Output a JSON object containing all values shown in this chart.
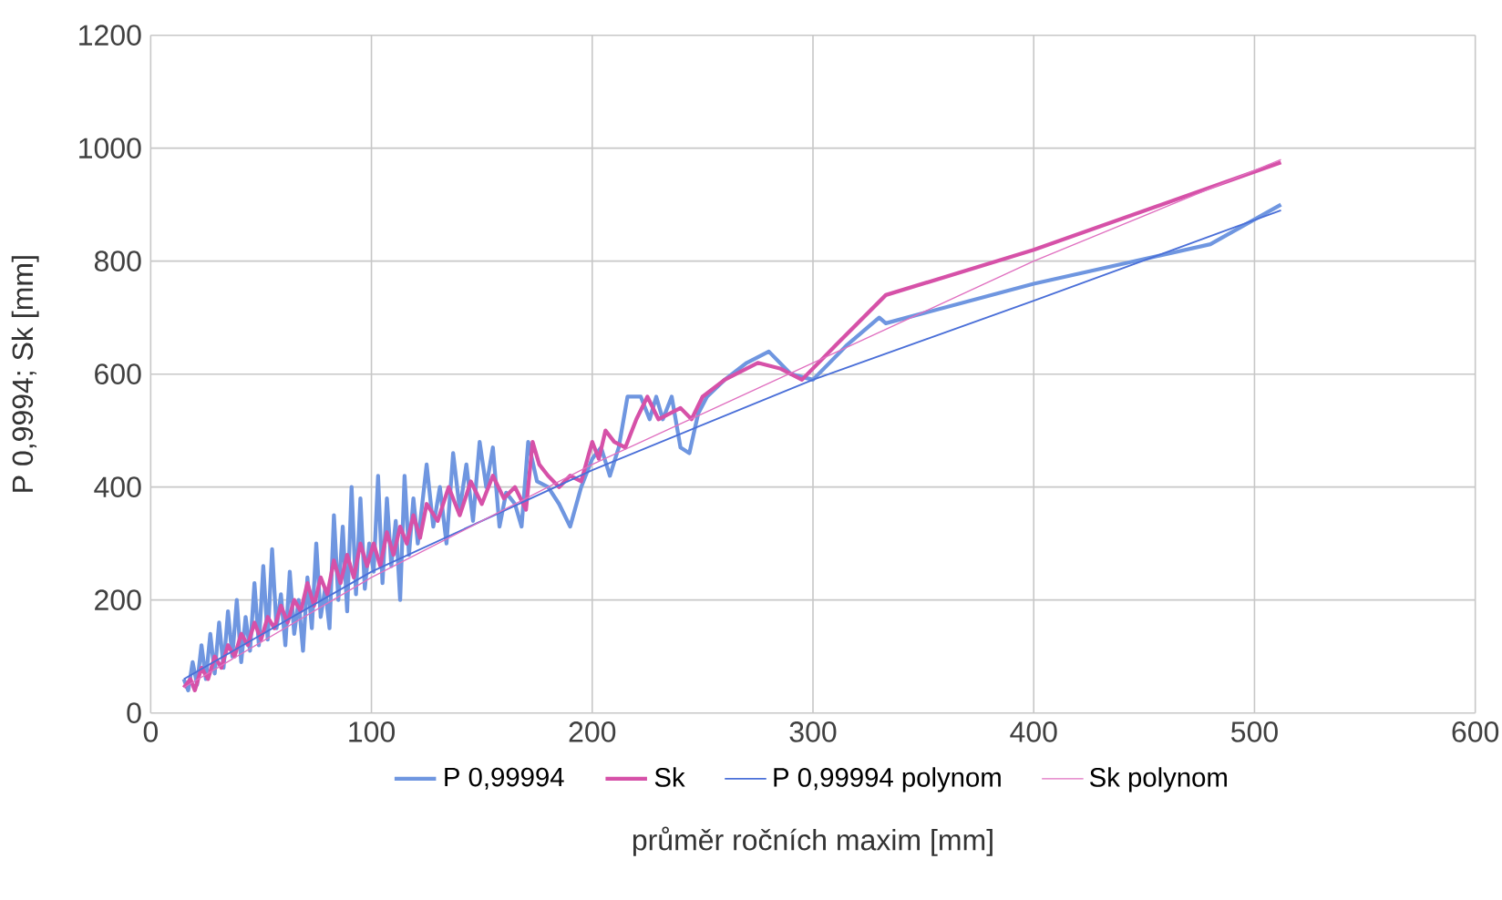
{
  "chart_data": {
    "type": "line",
    "xlabel": "průměr ročních maxim [mm]",
    "ylabel": "P 0,9994; Sk [mm]",
    "xlim": [
      0,
      600
    ],
    "xticks": [
      0,
      100,
      200,
      300,
      400,
      500,
      600
    ],
    "ylim": [
      0,
      1200
    ],
    "yticks": [
      0,
      200,
      400,
      600,
      800,
      1000,
      1200
    ],
    "grid": true,
    "legend": "bottom",
    "marker": "none",
    "line_style": "solid",
    "series": [
      {
        "name": "P 0,99994",
        "color": "#6f96e0",
        "x": [
          15,
          17,
          19,
          21,
          23,
          25,
          27,
          29,
          31,
          33,
          35,
          37,
          39,
          41,
          43,
          45,
          47,
          49,
          51,
          53,
          55,
          57,
          59,
          61,
          63,
          65,
          67,
          69,
          71,
          73,
          75,
          77,
          79,
          81,
          83,
          85,
          87,
          89,
          91,
          93,
          95,
          97,
          99,
          101,
          103,
          105,
          107,
          109,
          111,
          113,
          115,
          117,
          119,
          121,
          125,
          128,
          131,
          134,
          137,
          140,
          143,
          146,
          149,
          152,
          155,
          158,
          161,
          165,
          168,
          171,
          175,
          180,
          185,
          190,
          195,
          200,
          204,
          208,
          212,
          216,
          222,
          226,
          229,
          232,
          236,
          240,
          244,
          248,
          252,
          260,
          270,
          280,
          290,
          300,
          315,
          330,
          333,
          400,
          480,
          512
        ],
        "values": [
          60,
          40,
          90,
          50,
          120,
          60,
          140,
          70,
          160,
          80,
          180,
          100,
          200,
          90,
          170,
          110,
          230,
          120,
          260,
          130,
          290,
          150,
          210,
          120,
          250,
          140,
          200,
          110,
          240,
          150,
          300,
          170,
          220,
          150,
          350,
          200,
          330,
          180,
          400,
          210,
          380,
          220,
          300,
          250,
          420,
          230,
          380,
          260,
          340,
          200,
          420,
          280,
          380,
          300,
          440,
          330,
          400,
          300,
          460,
          360,
          440,
          340,
          480,
          400,
          470,
          330,
          390,
          370,
          330,
          480,
          410,
          400,
          370,
          330,
          400,
          450,
          470,
          420,
          470,
          560,
          560,
          520,
          560,
          520,
          560,
          470,
          460,
          530,
          560,
          590,
          620,
          640,
          600,
          590,
          650,
          700,
          690,
          760,
          830,
          900
        ]
      },
      {
        "name": "Sk",
        "color": "#d651a8",
        "x": [
          15,
          18,
          20,
          23,
          26,
          29,
          32,
          35,
          38,
          41,
          44,
          47,
          50,
          53,
          56,
          59,
          62,
          65,
          68,
          71,
          74,
          77,
          80,
          83,
          86,
          89,
          92,
          95,
          98,
          101,
          104,
          107,
          110,
          113,
          116,
          119,
          122,
          125,
          130,
          135,
          140,
          145,
          150,
          155,
          160,
          165,
          170,
          173,
          176,
          180,
          185,
          190,
          195,
          200,
          203,
          206,
          210,
          215,
          220,
          225,
          230,
          235,
          240,
          245,
          250,
          260,
          275,
          285,
          295,
          310,
          333,
          400,
          512
        ],
        "values": [
          45,
          60,
          40,
          80,
          60,
          100,
          80,
          120,
          100,
          140,
          120,
          160,
          130,
          170,
          150,
          190,
          160,
          200,
          180,
          230,
          190,
          240,
          210,
          270,
          230,
          280,
          240,
          300,
          260,
          300,
          260,
          320,
          280,
          330,
          300,
          350,
          310,
          370,
          340,
          400,
          350,
          410,
          370,
          420,
          380,
          400,
          360,
          480,
          440,
          420,
          400,
          420,
          410,
          480,
          450,
          500,
          480,
          470,
          520,
          560,
          520,
          530,
          540,
          520,
          560,
          590,
          620,
          610,
          590,
          650,
          740,
          820,
          975
        ]
      },
      {
        "name": "P 0,99994 polynom",
        "color": "#4a6fd8",
        "x": [
          15,
          100,
          200,
          300,
          400,
          512
        ],
        "values": [
          60,
          250,
          430,
          590,
          730,
          890
        ]
      },
      {
        "name": "Sk polynom",
        "color": "#e070c0",
        "x": [
          15,
          100,
          200,
          300,
          400,
          512
        ],
        "values": [
          45,
          240,
          440,
          620,
          800,
          980
        ]
      }
    ]
  }
}
